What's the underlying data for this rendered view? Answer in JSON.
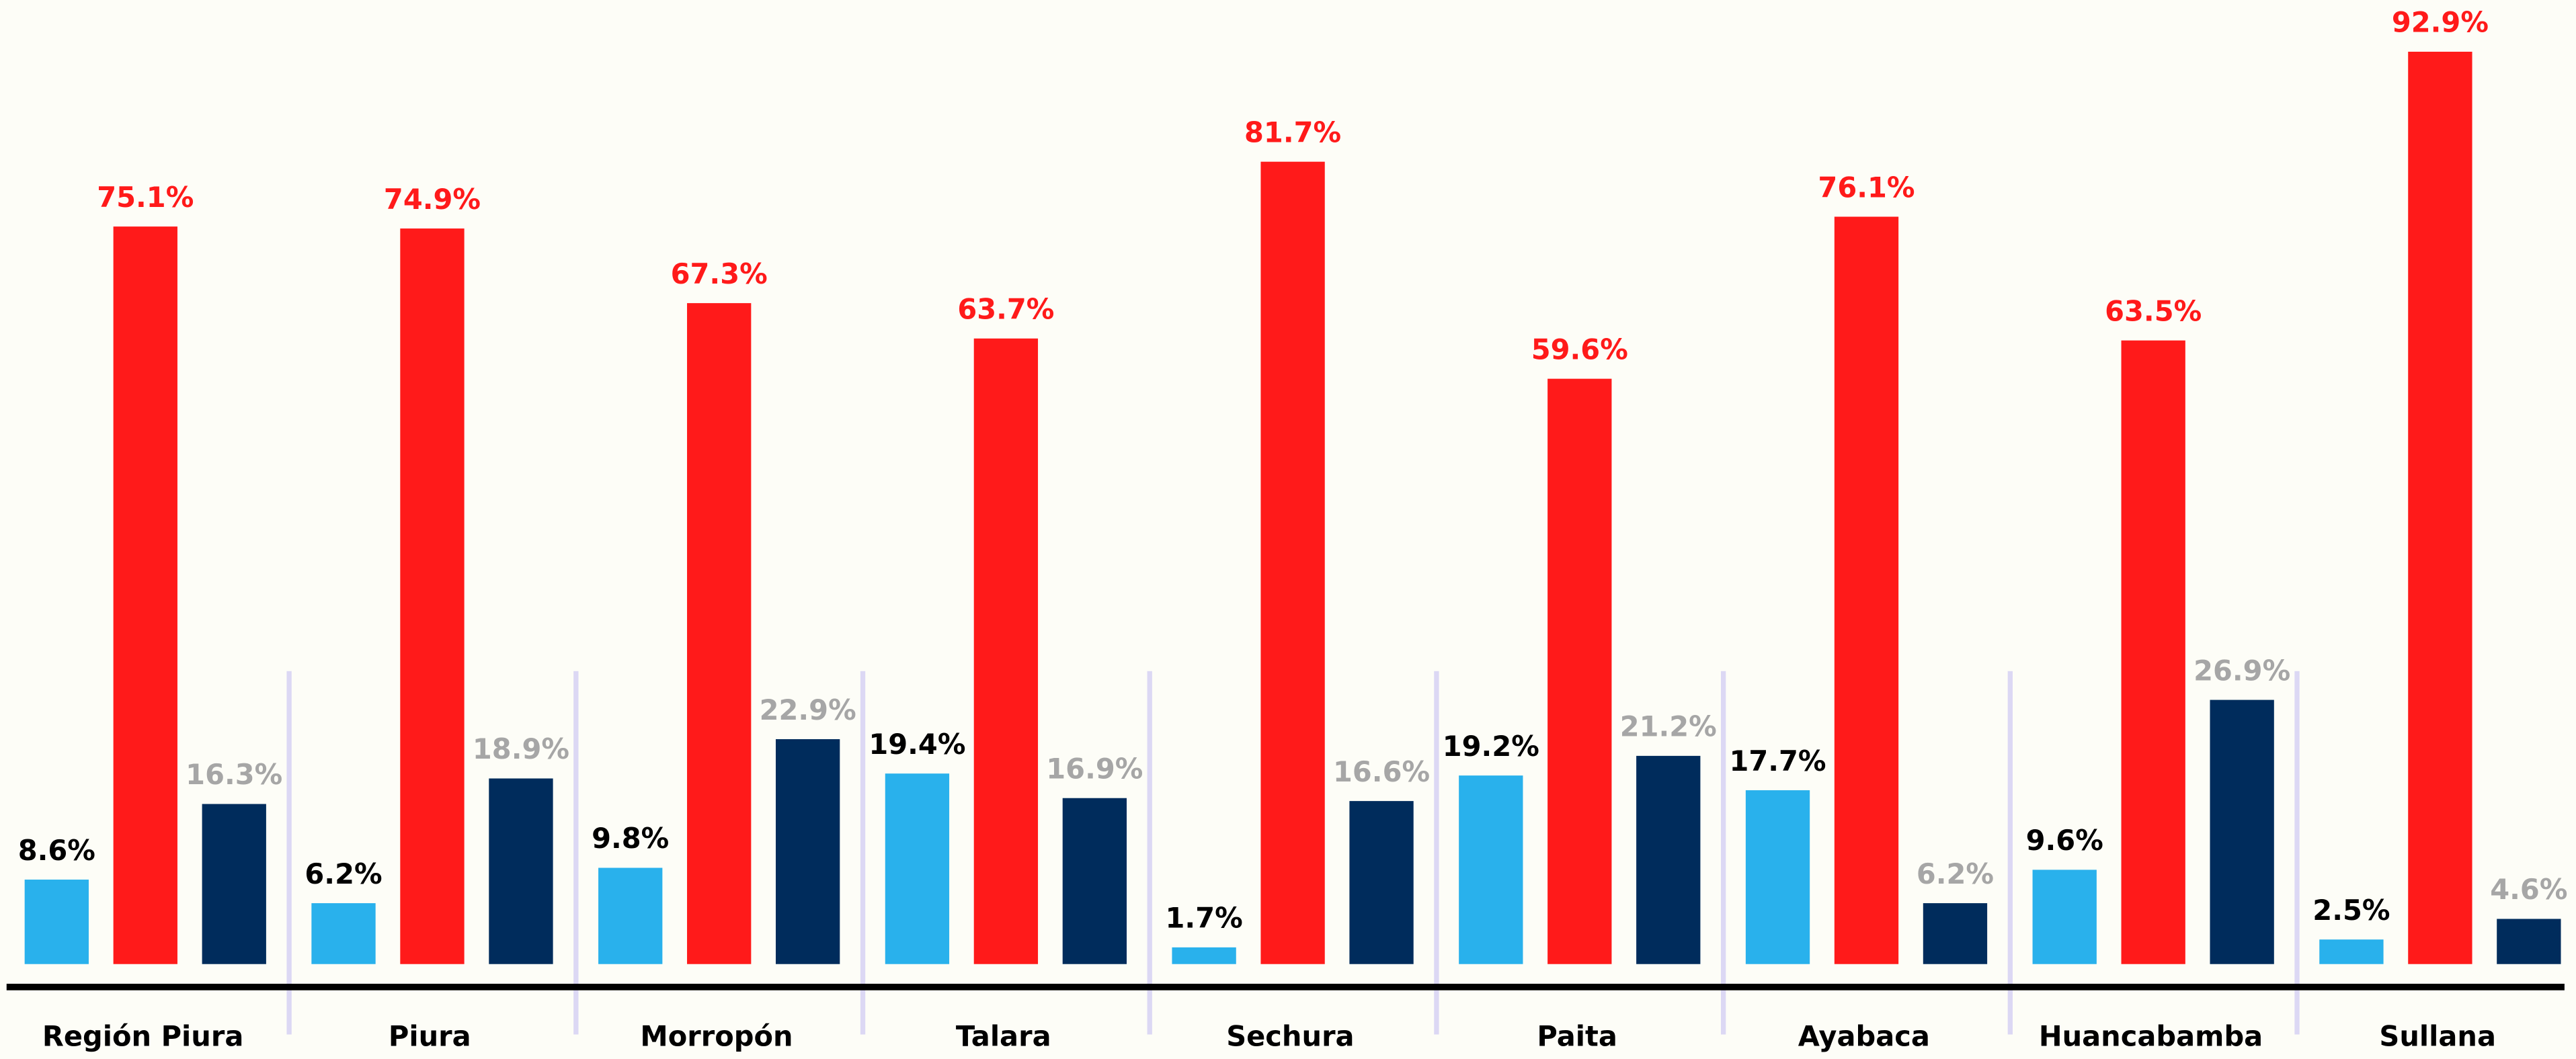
{
  "chart_data": {
    "type": "bar",
    "categories": [
      "Región Piura",
      "Piura",
      "Morropón",
      "Talara",
      "Sechura",
      "Paita",
      "Ayabaca",
      "Huancabamba",
      "Sullana"
    ],
    "series": [
      {
        "color": "#29b1ec",
        "label_color": "#000000",
        "values": [
          8.6,
          6.2,
          9.8,
          19.4,
          1.7,
          19.2,
          17.7,
          9.6,
          2.5
        ],
        "value_labels": [
          "8.6%",
          "6.2%",
          "9.8%",
          "19.4%",
          "1.7%",
          "19.2%",
          "17.7%",
          "9.6%",
          "2.5%"
        ]
      },
      {
        "color": "#ff1a1a",
        "label_color": "#ff1a1a",
        "values": [
          75.1,
          74.9,
          67.3,
          63.7,
          81.7,
          59.6,
          76.1,
          63.5,
          92.9
        ],
        "value_labels": [
          "75.1%",
          "74.9%",
          "67.3%",
          "63.7%",
          "81.7%",
          "59.6%",
          "76.1%",
          "63.5%",
          "92.9%"
        ]
      },
      {
        "color": "#002c5c",
        "label_color": "#a6a6a6",
        "values": [
          16.3,
          18.9,
          22.9,
          16.9,
          16.6,
          21.2,
          6.2,
          26.9,
          4.6
        ],
        "value_labels": [
          "16.3%",
          "18.9%",
          "22.9%",
          "16.9%",
          "16.6%",
          "21.2%",
          "6.2%",
          "26.9%",
          "4.6%"
        ]
      }
    ]
  }
}
